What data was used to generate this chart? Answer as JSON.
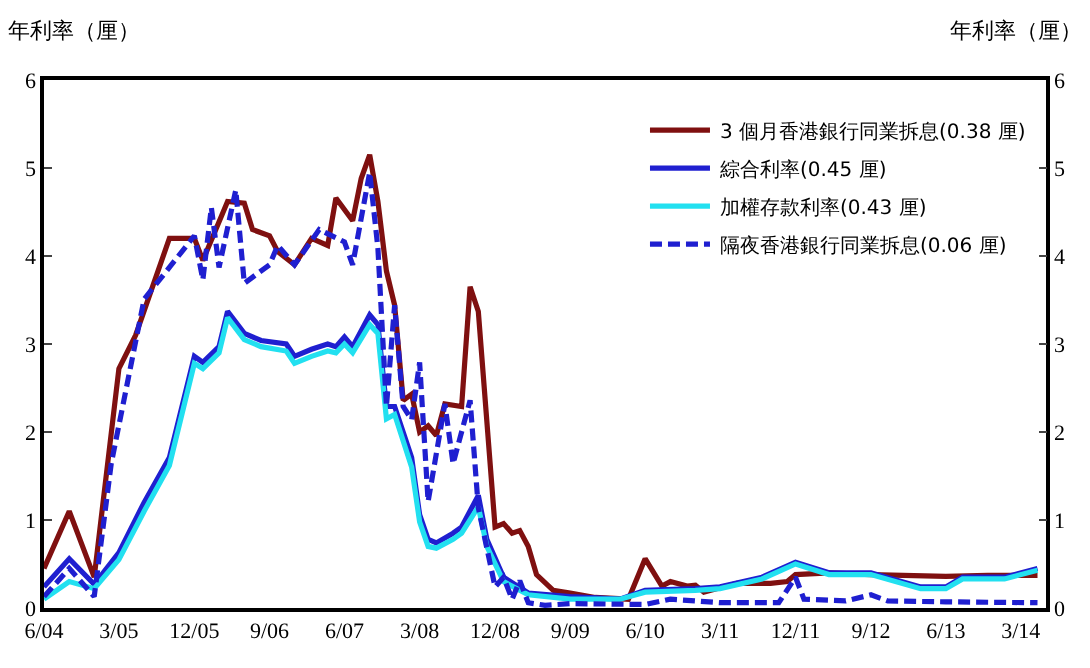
{
  "chart_data": {
    "type": "line",
    "ylabel": "年利率（厘）",
    "y2label": "年利率（厘）",
    "xlim": [
      "2004-06",
      "2014-06"
    ],
    "xticks": [
      {
        "value": "2004-06",
        "label": "6/04"
      },
      {
        "value": "2005-03",
        "label": "3/05"
      },
      {
        "value": "2005-12",
        "label": "12/05"
      },
      {
        "value": "2006-09",
        "label": "9/06"
      },
      {
        "value": "2007-06",
        "label": "6/07"
      },
      {
        "value": "2008-03",
        "label": "3/08"
      },
      {
        "value": "2008-12",
        "label": "12/08"
      },
      {
        "value": "2009-09",
        "label": "9/09"
      },
      {
        "value": "2010-06",
        "label": "6/10"
      },
      {
        "value": "2011-03",
        "label": "3/11"
      },
      {
        "value": "2011-12",
        "label": "12/11"
      },
      {
        "value": "2012-09",
        "label": "9/12"
      },
      {
        "value": "2013-06",
        "label": "6/13"
      },
      {
        "value": "2014-03",
        "label": "3/14"
      }
    ],
    "ylim": [
      0,
      6
    ],
    "yticks": [
      0,
      1,
      2,
      3,
      4,
      5,
      6
    ],
    "y2lim": [
      0,
      6
    ],
    "y2ticks": [
      0,
      1,
      2,
      3,
      4,
      5,
      6
    ],
    "legend": "top right",
    "marker": "none",
    "series": [
      {
        "name": "3 個月香港銀行同業拆息(0.38 厘)",
        "color": "#7f1010",
        "line_style": "solid",
        "x": [
          "2004-06",
          "2004-09",
          "2004-12",
          "2005-03",
          "2005-05",
          "2005-09",
          "2005-12",
          "2006-01",
          "2006-04",
          "2006-06",
          "2006-07",
          "2006-09",
          "2006-10",
          "2006-12",
          "2007-02",
          "2007-04",
          "2007-05",
          "2007-07",
          "2007-08",
          "2007-09",
          "2007-10",
          "2007-11",
          "2007-12",
          "2008-01",
          "2008-02",
          "2008-03",
          "2008-04",
          "2008-05",
          "2008-06",
          "2008-08",
          "2008-09",
          "2008-10",
          "2008-12",
          "2009-01",
          "2009-02",
          "2009-03",
          "2009-04",
          "2009-05",
          "2009-07",
          "2009-09",
          "2009-12",
          "2010-04",
          "2010-06",
          "2010-08",
          "2010-09",
          "2010-11",
          "2010-12",
          "2011-01",
          "2011-05",
          "2011-09",
          "2011-11",
          "2011-12",
          "2012-04",
          "2012-09",
          "2013-06",
          "2013-11",
          "2014-05"
        ],
        "values": [
          0.45,
          1.1,
          0.35,
          2.72,
          3.1,
          4.2,
          4.2,
          3.95,
          4.62,
          4.6,
          4.3,
          4.23,
          4.05,
          3.9,
          4.2,
          4.12,
          4.66,
          4.4,
          4.88,
          5.15,
          4.62,
          3.83,
          3.44,
          2.36,
          2.43,
          2.0,
          2.07,
          1.96,
          2.32,
          2.29,
          3.65,
          3.37,
          0.92,
          0.96,
          0.85,
          0.88,
          0.7,
          0.38,
          0.2,
          0.17,
          0.12,
          0.1,
          0.56,
          0.25,
          0.3,
          0.25,
          0.26,
          0.18,
          0.28,
          0.28,
          0.3,
          0.38,
          0.4,
          0.38,
          0.36,
          0.37,
          0.37
        ]
      },
      {
        "name": "綜合利率(0.45 厘)",
        "color": "#1f1fd0",
        "line_style": "solid",
        "x": [
          "2004-06",
          "2004-09",
          "2004-12",
          "2005-03",
          "2005-06",
          "2005-09",
          "2005-12",
          "2006-01",
          "2006-03",
          "2006-04",
          "2006-06",
          "2006-08",
          "2006-11",
          "2006-12",
          "2007-02",
          "2007-04",
          "2007-05",
          "2007-06",
          "2007-07",
          "2007-09",
          "2007-10",
          "2007-11",
          "2007-12",
          "2008-02",
          "2008-03",
          "2008-04",
          "2008-05",
          "2008-07",
          "2008-08",
          "2008-10",
          "2008-11",
          "2009-01",
          "2009-04",
          "2009-09",
          "2010-03",
          "2010-06",
          "2010-12",
          "2011-03",
          "2011-08",
          "2011-12",
          "2012-04",
          "2012-09",
          "2013-03",
          "2013-06",
          "2013-08",
          "2014-01",
          "2014-05"
        ],
        "values": [
          0.24,
          0.56,
          0.27,
          0.63,
          1.2,
          1.71,
          2.86,
          2.79,
          2.97,
          3.37,
          3.12,
          3.04,
          3.0,
          2.86,
          2.94,
          3.0,
          2.97,
          3.08,
          2.97,
          3.33,
          3.22,
          2.29,
          2.29,
          1.71,
          1.06,
          0.78,
          0.74,
          0.85,
          0.92,
          1.28,
          0.78,
          0.35,
          0.17,
          0.13,
          0.1,
          0.2,
          0.22,
          0.24,
          0.35,
          0.52,
          0.4,
          0.4,
          0.24,
          0.24,
          0.35,
          0.35,
          0.45
        ]
      },
      {
        "name": "加權存款利率(0.43 厘)",
        "color": "#22e0f0",
        "line_style": "solid",
        "x": [
          "2004-06",
          "2004-09",
          "2004-12",
          "2005-03",
          "2005-06",
          "2005-09",
          "2005-12",
          "2006-01",
          "2006-03",
          "2006-04",
          "2006-06",
          "2006-08",
          "2006-11",
          "2006-12",
          "2007-02",
          "2007-04",
          "2007-05",
          "2007-06",
          "2007-07",
          "2007-09",
          "2007-10",
          "2007-11",
          "2007-12",
          "2008-02",
          "2008-03",
          "2008-04",
          "2008-05",
          "2008-07",
          "2008-08",
          "2008-10",
          "2008-11",
          "2009-01",
          "2009-04",
          "2009-09",
          "2010-03",
          "2010-06",
          "2010-12",
          "2011-03",
          "2011-08",
          "2011-12",
          "2012-04",
          "2012-09",
          "2013-03",
          "2013-06",
          "2013-08",
          "2014-01",
          "2014-05"
        ],
        "values": [
          0.1,
          0.3,
          0.22,
          0.55,
          1.1,
          1.62,
          2.78,
          2.72,
          2.9,
          3.3,
          3.05,
          2.97,
          2.92,
          2.78,
          2.86,
          2.92,
          2.9,
          3.0,
          2.9,
          3.22,
          3.12,
          2.15,
          2.2,
          1.6,
          0.98,
          0.7,
          0.68,
          0.78,
          0.85,
          1.15,
          0.7,
          0.3,
          0.15,
          0.1,
          0.1,
          0.18,
          0.2,
          0.22,
          0.33,
          0.5,
          0.38,
          0.38,
          0.22,
          0.22,
          0.33,
          0.33,
          0.43
        ]
      },
      {
        "name": "隔夜香港銀行同業拆息(0.06 厘)",
        "color": "#1f1fd0",
        "line_style": "dashed",
        "x": [
          "2004-06",
          "2004-09",
          "2004-12",
          "2005-02",
          "2005-06",
          "2005-09",
          "2005-12",
          "2006-01",
          "2006-02",
          "2006-03",
          "2006-05",
          "2006-06",
          "2006-09",
          "2006-10",
          "2006-12",
          "2007-03",
          "2007-06",
          "2007-07",
          "2007-09",
          "2007-10",
          "2007-11",
          "2007-12",
          "2008-01",
          "2008-02",
          "2008-03",
          "2008-04",
          "2008-06",
          "2008-07",
          "2008-09",
          "2008-10",
          "2008-12",
          "2009-01",
          "2009-02",
          "2009-03",
          "2009-04",
          "2009-06",
          "2009-09",
          "2010-06",
          "2010-09",
          "2011-03",
          "2011-10",
          "2011-12",
          "2012-01",
          "2012-06",
          "2012-09",
          "2012-11",
          "2013-06",
          "2014-05"
        ],
        "values": [
          0.13,
          0.45,
          0.13,
          1.64,
          3.51,
          3.87,
          4.23,
          3.73,
          4.55,
          3.87,
          4.75,
          3.69,
          3.9,
          4.12,
          3.9,
          4.3,
          4.16,
          3.9,
          4.95,
          4.09,
          2.29,
          3.44,
          2.29,
          2.14,
          2.79,
          1.21,
          2.32,
          1.64,
          2.36,
          1.14,
          0.24,
          0.35,
          0.1,
          0.31,
          0.06,
          0.03,
          0.05,
          0.04,
          0.1,
          0.06,
          0.06,
          0.35,
          0.1,
          0.08,
          0.15,
          0.08,
          0.07,
          0.06
        ]
      }
    ]
  }
}
